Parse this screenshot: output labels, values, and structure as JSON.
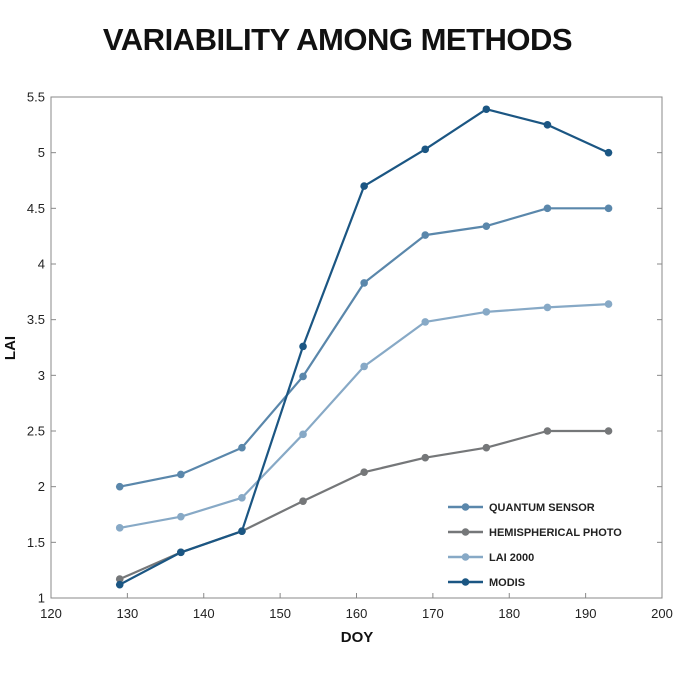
{
  "chart_data": {
    "type": "line",
    "title": "VARIABILITY AMONG METHODS",
    "xlabel": "DOY",
    "ylabel": "LAI",
    "xlim": [
      120,
      200
    ],
    "ylim": [
      1,
      5.5
    ],
    "xticks": [
      120,
      130,
      140,
      150,
      160,
      170,
      180,
      190,
      200
    ],
    "yticks": [
      1,
      1.5,
      2,
      2.5,
      3,
      3.5,
      4,
      4.5,
      5,
      5.5
    ],
    "grid": false,
    "legend_position": "bottom-right",
    "x": [
      129,
      137,
      145,
      153,
      161,
      169,
      177,
      185,
      193
    ],
    "series": [
      {
        "name": "QUANTUM SENSOR",
        "color": "#5a87ab",
        "values": [
          2.0,
          2.11,
          2.35,
          2.99,
          3.83,
          4.26,
          4.34,
          4.5,
          4.5
        ]
      },
      {
        "name": "HEMISPHERICAL PHOTO",
        "color": "#757779",
        "values": [
          1.17,
          1.41,
          1.6,
          1.87,
          2.13,
          2.26,
          2.35,
          2.5,
          2.5
        ]
      },
      {
        "name": "LAI 2000",
        "color": "#87a9c6",
        "values": [
          1.63,
          1.73,
          1.9,
          2.47,
          3.08,
          3.48,
          3.57,
          3.61,
          3.64
        ]
      },
      {
        "name": "MODIS",
        "color": "#1b5683",
        "values": [
          1.12,
          1.41,
          1.6,
          3.26,
          4.7,
          5.03,
          5.39,
          5.25,
          5.0
        ]
      }
    ]
  }
}
